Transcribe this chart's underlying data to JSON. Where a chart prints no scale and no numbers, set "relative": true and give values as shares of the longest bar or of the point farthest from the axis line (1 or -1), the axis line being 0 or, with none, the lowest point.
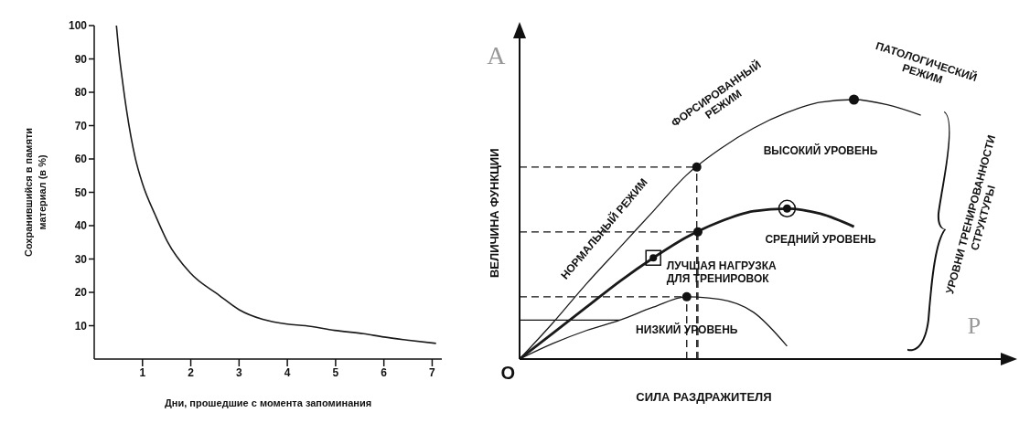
{
  "chart_data": [
    {
      "type": "line",
      "xlabel": "Дни, прошедшие с момента запоминания",
      "ylabel": "Сохранившийся в памяти\nматериал (в %)",
      "x": [
        0.46,
        0.52,
        0.58,
        0.67,
        0.85,
        1.0,
        1.27,
        1.51,
        1.99,
        2.59,
        3.0,
        3.49,
        4.0,
        4.38,
        4.98,
        5.58,
        6.0,
        6.48,
        7.08
      ],
      "values": [
        100,
        91,
        84,
        74.6,
        60.3,
        52.6,
        43,
        35.4,
        25.8,
        19.1,
        14.8,
        11.9,
        10.5,
        10,
        8.6,
        7.6,
        6.6,
        5.7,
        4.7
      ],
      "color": "#1a1a1a",
      "xlim": [
        0,
        7.2
      ],
      "xticks": [
        1,
        2,
        3,
        4,
        5,
        6,
        7
      ],
      "ylim": [
        0,
        100
      ],
      "yticks": [
        10,
        20,
        30,
        40,
        50,
        60,
        70,
        80,
        90,
        100
      ]
    },
    {
      "type": "line",
      "relative": true,
      "xlabel": "СИЛА РАЗДРАЖИТЕЛЯ",
      "ylabel": "ВЕЛИЧИНА ФУНКЦИИ",
      "categories": [
        null,
        null,
        null,
        null,
        null,
        null,
        null,
        null,
        null,
        null,
        null,
        null,
        null
      ],
      "series": [
        {
          "name": "ВЫСОКИЙ УРОВЕНЬ",
          "color": "#1a1a1a",
          "values": [
            0,
            0.14,
            0.29,
            0.43,
            0.57,
            0.71,
            0.81,
            0.89,
            0.95,
            0.99,
            1.0,
            0.98,
            0.94
          ]
        },
        {
          "name": "СРЕДНИЙ УРОВЕНЬ",
          "color": "#1a1a1a",
          "values": [
            0,
            0.1,
            0.2,
            0.3,
            0.39,
            0.47,
            0.53,
            0.57,
            0.58,
            0.56,
            0.51,
            null,
            null
          ]
        },
        {
          "name": "НИЗКИЙ УРОВЕНЬ",
          "color": "#1a1a1a",
          "values": [
            0,
            0.06,
            0.11,
            0.15,
            0.2,
            0.24,
            0.23,
            0.18,
            0.05,
            null,
            null,
            null,
            null
          ]
        }
      ],
      "ref_lines": [
        {
          "axis": "y",
          "value": 0.74,
          "line_style": "dashed"
        },
        {
          "axis": "y",
          "value": 0.49,
          "line_style": "dashed"
        },
        {
          "axis": "y",
          "value": 0.24,
          "line_style": "dashed"
        },
        {
          "axis": "y",
          "value": 0.15,
          "line_style": "solid"
        }
      ],
      "annotations": [
        "A",
        "O",
        "P",
        "НОРМАЛЬНЫЙ РЕЖИМ",
        "ФОРСИРОВАННЫЙ\nРЕЖИМ",
        "ПАТОЛОГИЧЕСКИЙ\nРЕЖИМ",
        "ЛУЧШАЯ НАГРУЗКА\nДЛЯ ТРЕНИРОВОК",
        "УРОВНИ ТРЕНИРОВАННОСТИ\nСТРУКТУРЫ"
      ]
    }
  ]
}
